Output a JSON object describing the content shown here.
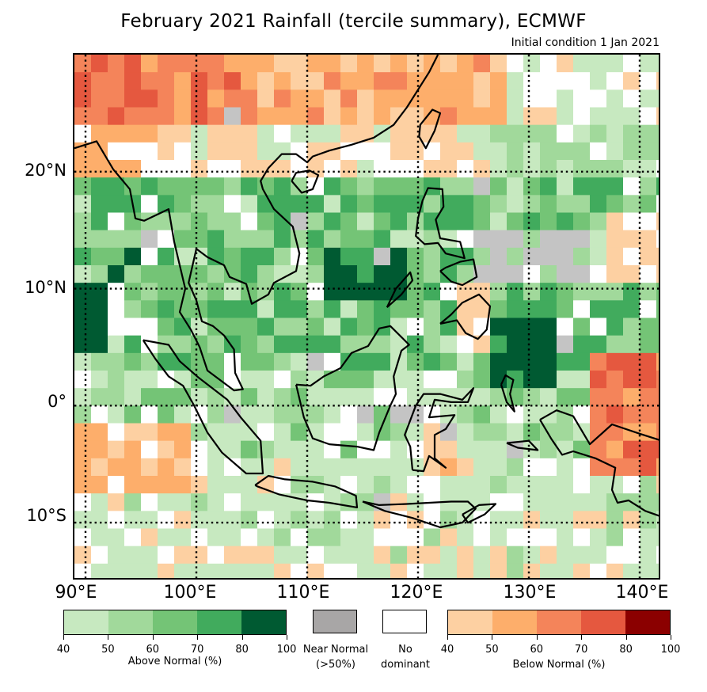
{
  "title": "February 2021 Rainfall (tercile summary), ECMWF",
  "subtitle": "Initial condition 1 Jan 2021",
  "map": {
    "lon_range": [
      89,
      142
    ],
    "lat_range": [
      -15,
      30
    ],
    "grid_step_deg": 1.5,
    "lat_labels": [
      "20°N",
      "10°N",
      "0°",
      "10°S"
    ],
    "lat_values": [
      20,
      10,
      0,
      -10
    ],
    "lon_labels": [
      "90°E",
      "100°E",
      "110°E",
      "120°E",
      "130°E",
      "140°E"
    ],
    "lon_values": [
      90,
      100,
      110,
      120,
      130,
      140
    ]
  },
  "legend": {
    "above_normal": {
      "label": "Above Normal (%)",
      "ticks": [
        "40",
        "50",
        "60",
        "70",
        "80",
        "100"
      ],
      "colors": [
        "#c7e9c0",
        "#a1d99b",
        "#74c476",
        "#41ab5d",
        "#005a32"
      ]
    },
    "near_normal": {
      "label_line1": "Near Normal",
      "label_line2": "(>50%)",
      "color": "#a8a6a6"
    },
    "no_dominant": {
      "label_line1": "No",
      "label_line2": "dominant",
      "color": "#ffffff"
    },
    "below_normal": {
      "label": "Below Normal (%)",
      "ticks": [
        "40",
        "50",
        "60",
        "70",
        "80",
        "100"
      ],
      "colors": [
        "#fdd0a2",
        "#fdae6b",
        "#f4845a",
        "#e5583f",
        "#8b0000"
      ]
    }
  },
  "land_color": "#000000"
}
